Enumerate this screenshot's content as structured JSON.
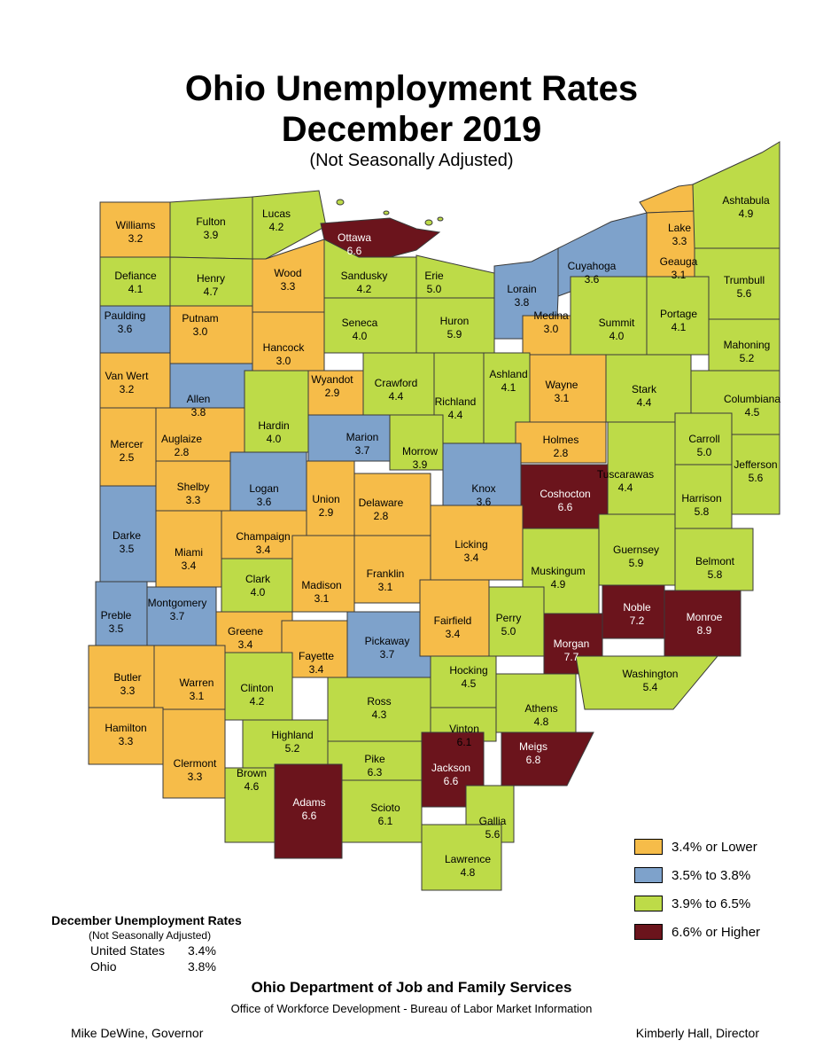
{
  "map": {
    "title_line1": "Ohio Unemployment Rates",
    "title_line2": "December 2019",
    "subtitle": "(Not Seasonally Adjusted)"
  },
  "colors": {
    "low": "#F6BC49",
    "mid": "#7EA2CB",
    "high": "#BDDB48",
    "highest": "#6B141C",
    "stroke": "#3a3a3a",
    "water": "#6B141C"
  },
  "legend": [
    {
      "label": "3.4% or Lower",
      "color_key": "low"
    },
    {
      "label": "3.5% to 3.8%",
      "color_key": "mid"
    },
    {
      "label": "3.9% to 6.5%",
      "color_key": "high"
    },
    {
      "label": "6.6% or Higher",
      "color_key": "highest"
    }
  ],
  "counties": [
    {
      "name": "Williams",
      "rate": "3.2",
      "cat": "low"
    },
    {
      "name": "Fulton",
      "rate": "3.9",
      "cat": "high"
    },
    {
      "name": "Lucas",
      "rate": "4.2",
      "cat": "high"
    },
    {
      "name": "Ottawa",
      "rate": "6.6",
      "cat": "highest"
    },
    {
      "name": "Defiance",
      "rate": "4.1",
      "cat": "high"
    },
    {
      "name": "Henry",
      "rate": "4.7",
      "cat": "high"
    },
    {
      "name": "Wood",
      "rate": "3.3",
      "cat": "low"
    },
    {
      "name": "Sandusky",
      "rate": "4.2",
      "cat": "high"
    },
    {
      "name": "Erie",
      "rate": "5.0",
      "cat": "high"
    },
    {
      "name": "Lorain",
      "rate": "3.8",
      "cat": "mid"
    },
    {
      "name": "Cuyahoga",
      "rate": "3.6",
      "cat": "mid"
    },
    {
      "name": "Lake",
      "rate": "3.3",
      "cat": "low"
    },
    {
      "name": "Geauga",
      "rate": "3.1",
      "cat": "low"
    },
    {
      "name": "Ashtabula",
      "rate": "4.9",
      "cat": "high"
    },
    {
      "name": "Trumbull",
      "rate": "5.6",
      "cat": "high"
    },
    {
      "name": "Paulding",
      "rate": "3.6",
      "cat": "mid"
    },
    {
      "name": "Putnam",
      "rate": "3.0",
      "cat": "low"
    },
    {
      "name": "Hancock",
      "rate": "3.0",
      "cat": "low"
    },
    {
      "name": "Seneca",
      "rate": "4.0",
      "cat": "high"
    },
    {
      "name": "Huron",
      "rate": "5.9",
      "cat": "high"
    },
    {
      "name": "Medina",
      "rate": "3.0",
      "cat": "low"
    },
    {
      "name": "Summit",
      "rate": "4.0",
      "cat": "high"
    },
    {
      "name": "Portage",
      "rate": "4.1",
      "cat": "high"
    },
    {
      "name": "Mahoning",
      "rate": "5.2",
      "cat": "high"
    },
    {
      "name": "Van Wert",
      "rate": "3.2",
      "cat": "low"
    },
    {
      "name": "Allen",
      "rate": "3.8",
      "cat": "mid"
    },
    {
      "name": "Wyandot",
      "rate": "2.9",
      "cat": "low"
    },
    {
      "name": "Crawford",
      "rate": "4.4",
      "cat": "high"
    },
    {
      "name": "Richland",
      "rate": "4.4",
      "cat": "high"
    },
    {
      "name": "Ashland",
      "rate": "4.1",
      "cat": "high"
    },
    {
      "name": "Wayne",
      "rate": "3.1",
      "cat": "low"
    },
    {
      "name": "Stark",
      "rate": "4.4",
      "cat": "high"
    },
    {
      "name": "Columbiana",
      "rate": "4.5",
      "cat": "high"
    },
    {
      "name": "Mercer",
      "rate": "2.5",
      "cat": "low"
    },
    {
      "name": "Auglaize",
      "rate": "2.8",
      "cat": "low"
    },
    {
      "name": "Hardin",
      "rate": "4.0",
      "cat": "high"
    },
    {
      "name": "Marion",
      "rate": "3.7",
      "cat": "mid"
    },
    {
      "name": "Morrow",
      "rate": "3.9",
      "cat": "high"
    },
    {
      "name": "Holmes",
      "rate": "2.8",
      "cat": "low"
    },
    {
      "name": "Carroll",
      "rate": "5.0",
      "cat": "high"
    },
    {
      "name": "Jefferson",
      "rate": "5.6",
      "cat": "high"
    },
    {
      "name": "Shelby",
      "rate": "3.3",
      "cat": "low"
    },
    {
      "name": "Logan",
      "rate": "3.6",
      "cat": "mid"
    },
    {
      "name": "Union",
      "rate": "2.9",
      "cat": "low"
    },
    {
      "name": "Delaware",
      "rate": "2.8",
      "cat": "low"
    },
    {
      "name": "Knox",
      "rate": "3.6",
      "cat": "mid"
    },
    {
      "name": "Coshocton",
      "rate": "6.6",
      "cat": "highest"
    },
    {
      "name": "Tuscarawas",
      "rate": "4.4",
      "cat": "high"
    },
    {
      "name": "Harrison",
      "rate": "5.8",
      "cat": "high"
    },
    {
      "name": "Darke",
      "rate": "3.5",
      "cat": "mid"
    },
    {
      "name": "Miami",
      "rate": "3.4",
      "cat": "low"
    },
    {
      "name": "Champaign",
      "rate": "3.4",
      "cat": "low"
    },
    {
      "name": "Licking",
      "rate": "3.4",
      "cat": "low"
    },
    {
      "name": "Muskingum",
      "rate": "4.9",
      "cat": "high"
    },
    {
      "name": "Guernsey",
      "rate": "5.9",
      "cat": "high"
    },
    {
      "name": "Belmont",
      "rate": "5.8",
      "cat": "high"
    },
    {
      "name": "Clark",
      "rate": "4.0",
      "cat": "high"
    },
    {
      "name": "Madison",
      "rate": "3.1",
      "cat": "low"
    },
    {
      "name": "Franklin",
      "rate": "3.1",
      "cat": "low"
    },
    {
      "name": "Preble",
      "rate": "3.5",
      "cat": "mid"
    },
    {
      "name": "Montgomery",
      "rate": "3.7",
      "cat": "mid"
    },
    {
      "name": "Greene",
      "rate": "3.4",
      "cat": "low"
    },
    {
      "name": "Pickaway",
      "rate": "3.7",
      "cat": "mid"
    },
    {
      "name": "Fairfield",
      "rate": "3.4",
      "cat": "low"
    },
    {
      "name": "Perry",
      "rate": "5.0",
      "cat": "high"
    },
    {
      "name": "Morgan",
      "rate": "7.7",
      "cat": "highest"
    },
    {
      "name": "Noble",
      "rate": "7.2",
      "cat": "highest"
    },
    {
      "name": "Monroe",
      "rate": "8.9",
      "cat": "highest"
    },
    {
      "name": "Fayette",
      "rate": "3.4",
      "cat": "low"
    },
    {
      "name": "Butler",
      "rate": "3.3",
      "cat": "low"
    },
    {
      "name": "Warren",
      "rate": "3.1",
      "cat": "low"
    },
    {
      "name": "Clinton",
      "rate": "4.2",
      "cat": "high"
    },
    {
      "name": "Hocking",
      "rate": "4.5",
      "cat": "high"
    },
    {
      "name": "Washington",
      "rate": "5.4",
      "cat": "high"
    },
    {
      "name": "Ross",
      "rate": "4.3",
      "cat": "high"
    },
    {
      "name": "Vinton",
      "rate": "6.1",
      "cat": "high"
    },
    {
      "name": "Athens",
      "rate": "4.8",
      "cat": "high"
    },
    {
      "name": "Hamilton",
      "rate": "3.3",
      "cat": "low"
    },
    {
      "name": "Clermont",
      "rate": "3.3",
      "cat": "low"
    },
    {
      "name": "Highland",
      "rate": "5.2",
      "cat": "high"
    },
    {
      "name": "Pike",
      "rate": "6.3",
      "cat": "high"
    },
    {
      "name": "Jackson",
      "rate": "6.6",
      "cat": "highest"
    },
    {
      "name": "Meigs",
      "rate": "6.8",
      "cat": "highest"
    },
    {
      "name": "Brown",
      "rate": "4.6",
      "cat": "high"
    },
    {
      "name": "Adams",
      "rate": "6.6",
      "cat": "highest"
    },
    {
      "name": "Scioto",
      "rate": "6.1",
      "cat": "high"
    },
    {
      "name": "Gallia",
      "rate": "5.6",
      "cat": "high"
    },
    {
      "name": "Lawrence",
      "rate": "4.8",
      "cat": "high"
    }
  ],
  "national": {
    "header": "December Unemployment Rates",
    "subheader": "(Not Seasonally Adjusted)",
    "rows": [
      {
        "label": "United States",
        "value": "3.4%"
      },
      {
        "label": "Ohio",
        "value": "3.8%"
      }
    ]
  },
  "footer": {
    "agency": "Ohio Department of Job and Family Services",
    "office": "Office of Workforce Development - Bureau of Labor Market Information",
    "governor": "Mike DeWine, Governor",
    "director": "Kimberly Hall, Director"
  }
}
